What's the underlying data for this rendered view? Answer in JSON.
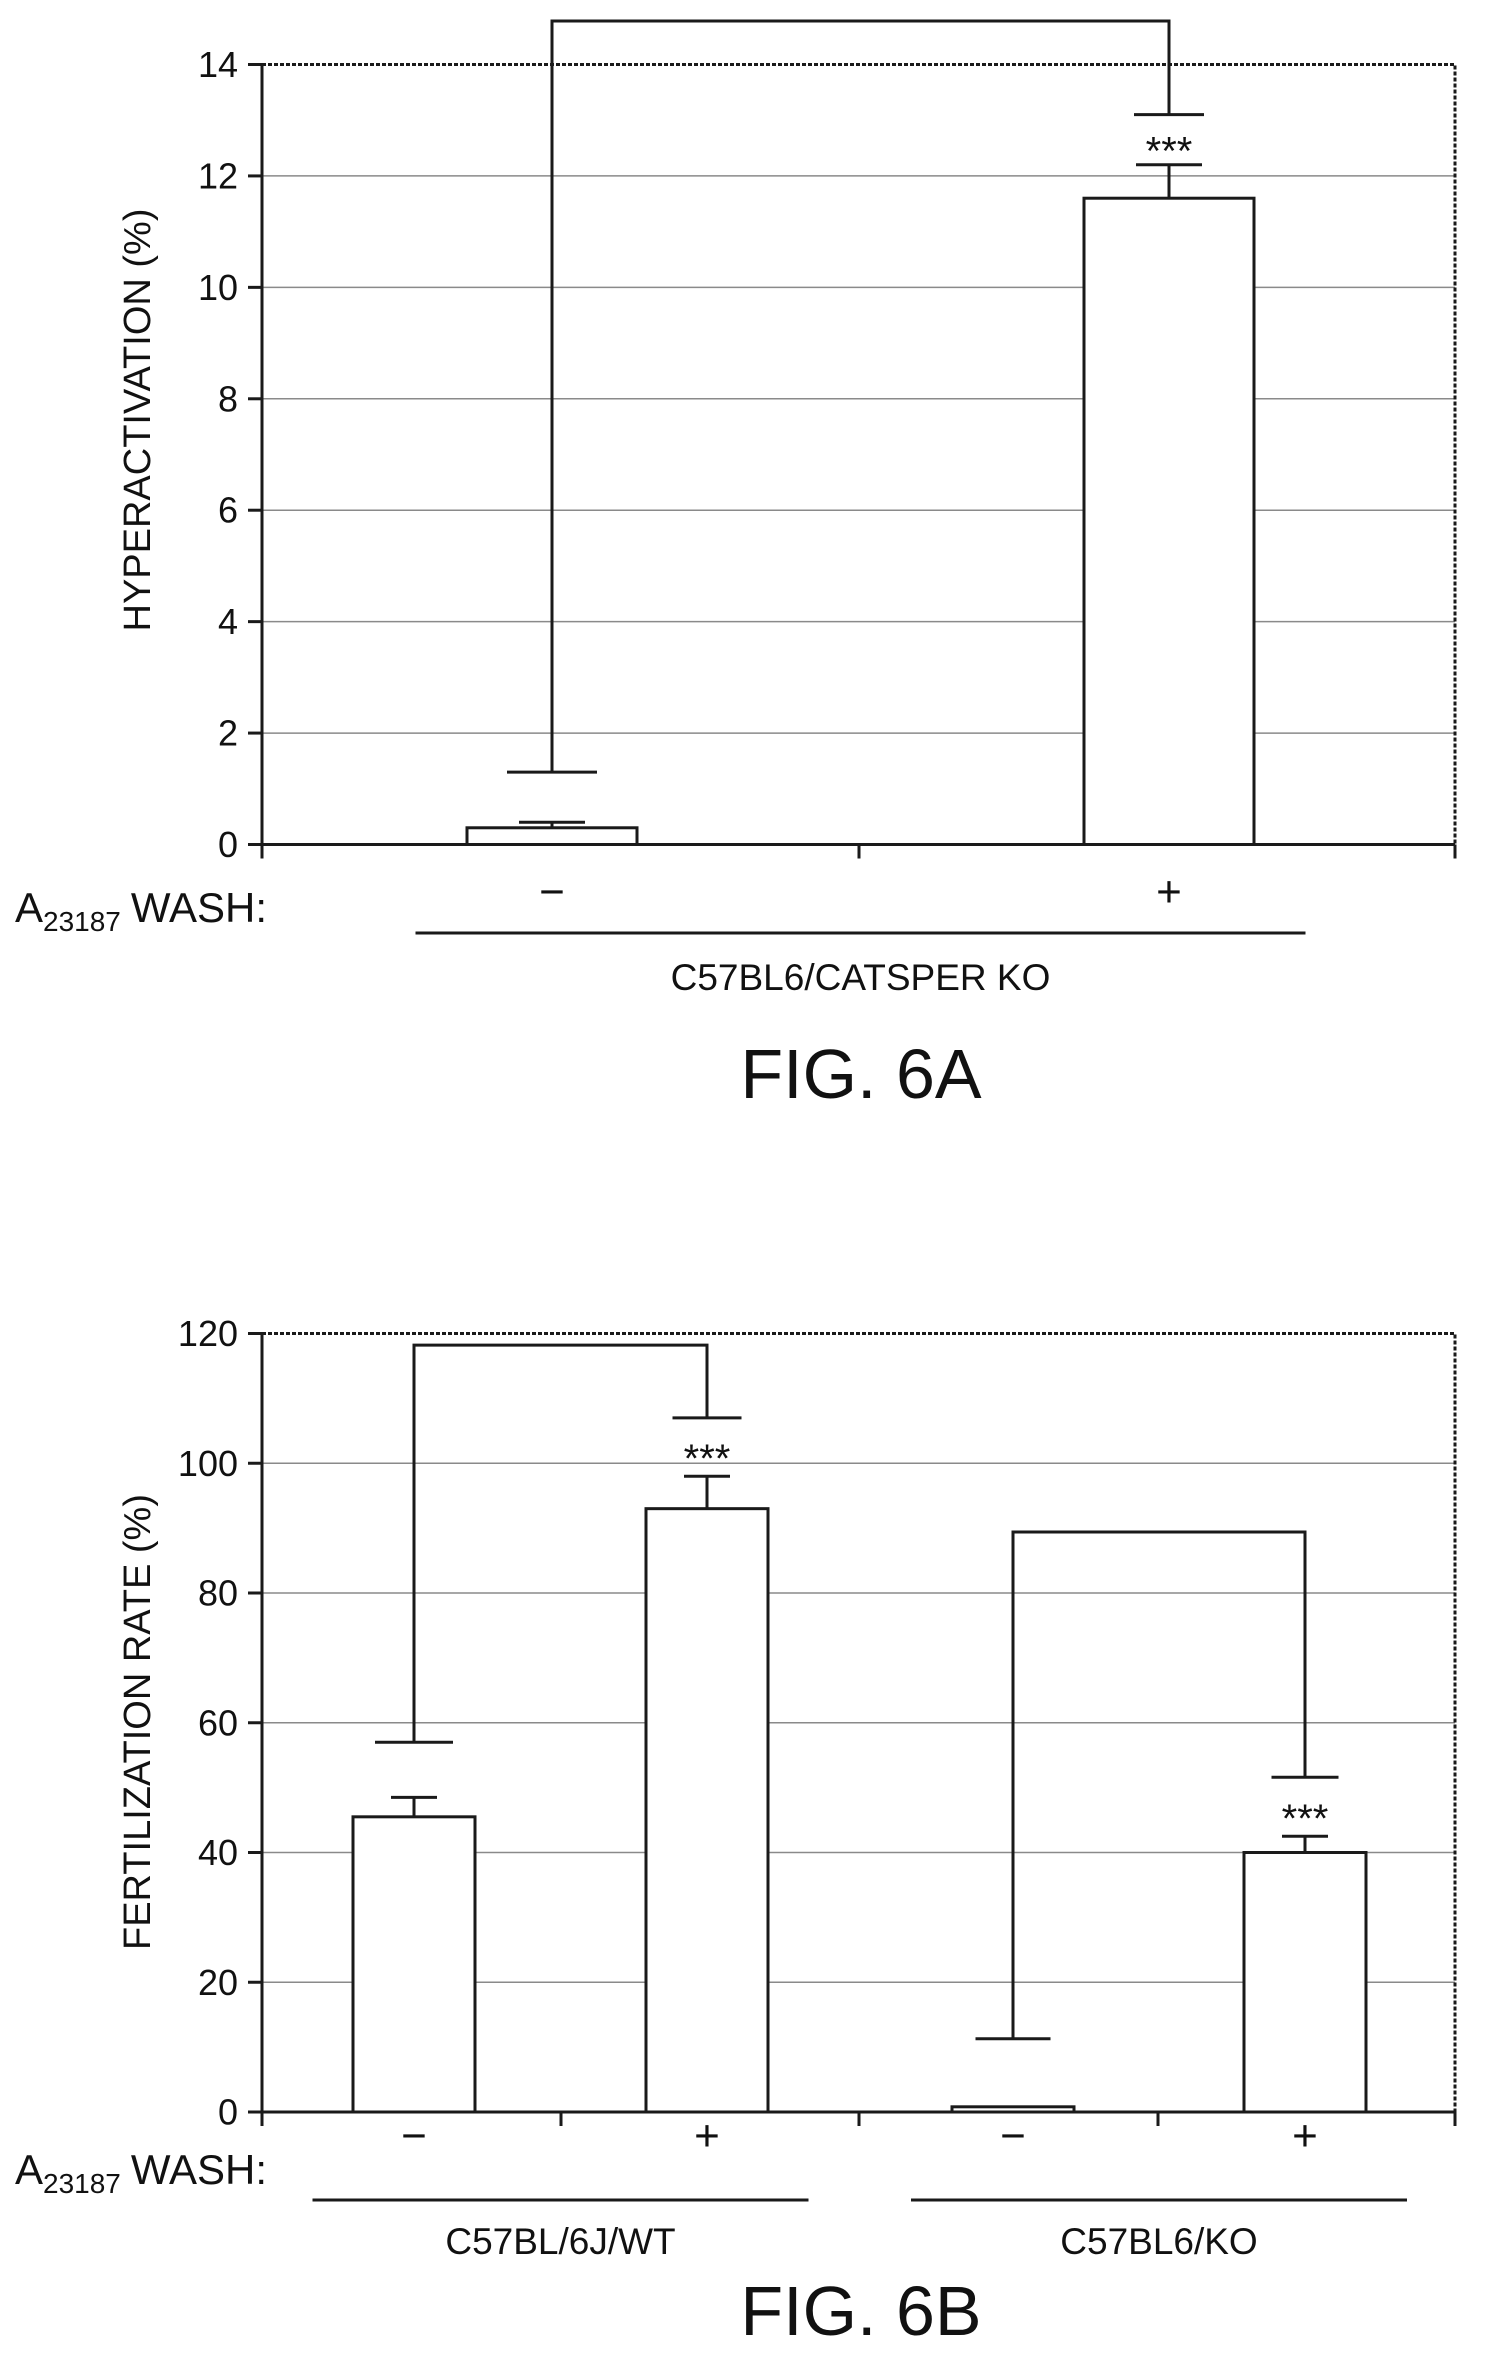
{
  "chart_data": [
    {
      "type": "bar",
      "figure_label": "FIG. 6A",
      "ylabel": "HYPERACTIVATION (%)",
      "ylim": [
        0,
        14
      ],
      "yticks": [
        0,
        2,
        4,
        6,
        8,
        10,
        12,
        14
      ],
      "grid": true,
      "treatment_label": {
        "base": "A",
        "sub": "23187",
        "rest": "WASH:"
      },
      "categories": [
        "−",
        "+"
      ],
      "values": [
        0.3,
        11.6
      ],
      "errors": [
        0.1,
        0.6
      ],
      "groups": [
        {
          "label": "C57BL6/CATSPER KO",
          "members": [
            0,
            1
          ]
        }
      ],
      "significance": [
        {
          "between": [
            0,
            1
          ],
          "label": "***"
        }
      ]
    },
    {
      "type": "bar",
      "figure_label": "FIG. 6B",
      "ylabel": "FERTILIZATION RATE (%)",
      "ylim": [
        0,
        120
      ],
      "yticks": [
        0,
        20,
        40,
        60,
        80,
        100,
        120
      ],
      "grid": true,
      "treatment_label": {
        "base": "A",
        "sub": "23187",
        "rest": "WASH:"
      },
      "categories": [
        "−",
        "+",
        "−",
        "+"
      ],
      "values": [
        45.5,
        93,
        0.8,
        40
      ],
      "errors": [
        3,
        5,
        0,
        2.5
      ],
      "groups": [
        {
          "label": "C57BL/6J/WT",
          "members": [
            0,
            1
          ]
        },
        {
          "label": "C57BL6/KO",
          "members": [
            2,
            3
          ]
        }
      ],
      "significance": [
        {
          "between": [
            0,
            1
          ],
          "label": "***"
        },
        {
          "between": [
            2,
            3
          ],
          "label": "***"
        }
      ]
    }
  ]
}
